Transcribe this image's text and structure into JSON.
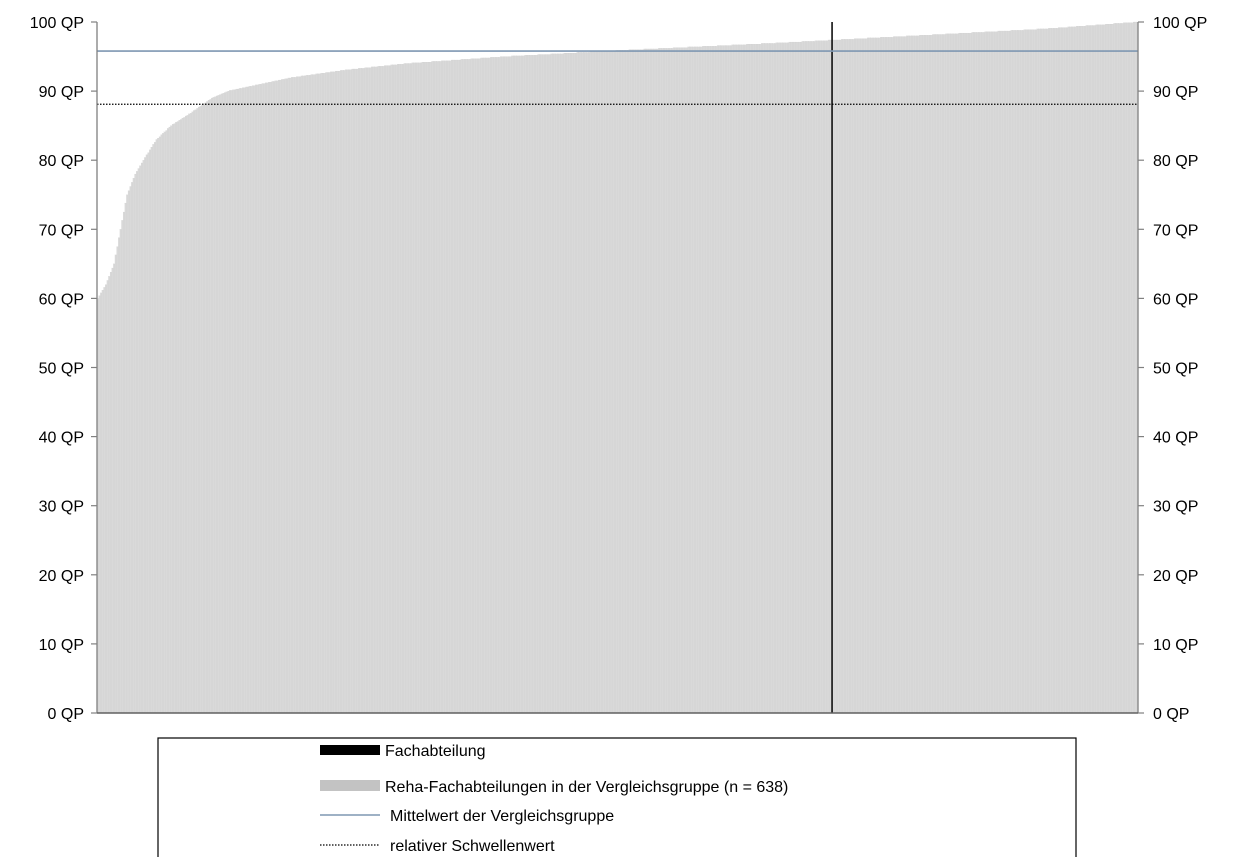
{
  "chart_data": {
    "type": "bar",
    "ylim": [
      0,
      100
    ],
    "y_ticks": [
      0,
      10,
      20,
      30,
      40,
      50,
      60,
      70,
      80,
      90,
      100
    ],
    "y_unit": "QP",
    "y_tick_labels": [
      "0 QP",
      "10 QP",
      "20 QP",
      "30 QP",
      "40 QP",
      "50 QP",
      "60 QP",
      "70 QP",
      "80 QP",
      "90 QP",
      "100 QP"
    ],
    "y_axes": "left-and-right",
    "grid": false,
    "n_comparison": 638,
    "comparison_values_sorted_profile": [
      [
        0,
        60
      ],
      [
        5,
        62
      ],
      [
        10,
        65
      ],
      [
        14,
        70
      ],
      [
        18,
        75
      ],
      [
        23,
        78
      ],
      [
        28,
        80
      ],
      [
        36,
        83
      ],
      [
        45,
        85
      ],
      [
        58,
        87
      ],
      [
        70,
        89
      ],
      [
        80,
        90
      ],
      [
        100,
        91
      ],
      [
        120,
        92
      ],
      [
        150,
        93
      ],
      [
        190,
        94
      ],
      [
        250,
        95
      ],
      [
        330,
        96
      ],
      [
        420,
        97
      ],
      [
        500,
        98
      ],
      [
        580,
        99
      ],
      [
        637,
        100
      ]
    ],
    "highlight_index": 450,
    "highlight_value": 100,
    "mean_value": 95.8,
    "threshold_value": 88.1,
    "colors": {
      "highlight": "#000000",
      "comparison": "#d9d9d9",
      "mean_line": "#7f97b2",
      "threshold_line": "#000000",
      "axis": "#808080"
    },
    "legend": [
      {
        "key": "highlight",
        "label": "Fachabteilung",
        "symbol": "bar"
      },
      {
        "key": "comparison",
        "label": "Reha-Fachabteilungen in der Vergleichsgruppe (n = 638)",
        "symbol": "bar"
      },
      {
        "key": "mean_line",
        "label": "Mittelwert der Vergleichsgruppe",
        "symbol": "line"
      },
      {
        "key": "threshold_line",
        "label": "relativer Schwellenwert",
        "symbol": "dotted-line"
      }
    ]
  }
}
